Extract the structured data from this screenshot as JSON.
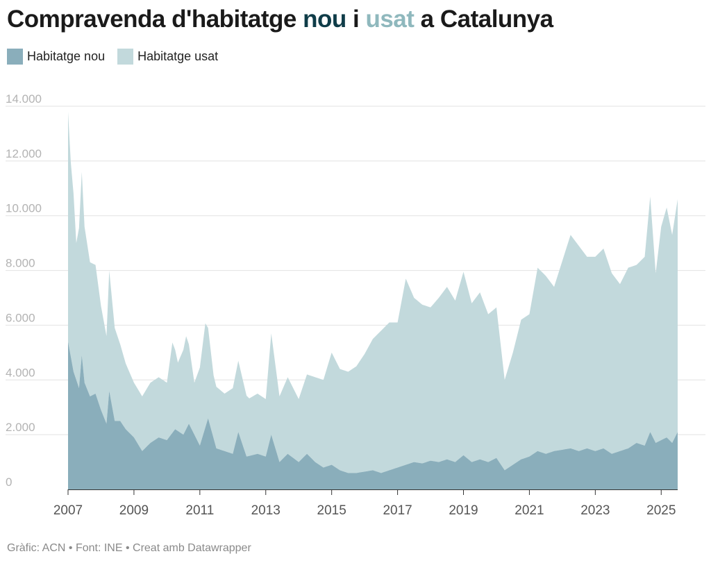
{
  "title": {
    "part1": "Compravenda d'habitatge ",
    "part2": "nou",
    "part3": " i ",
    "part4": "usat",
    "part5": " a Catalunya"
  },
  "colors": {
    "nou": "#8aaebb",
    "usat": "#c2d9dc",
    "title_nou": "#0f3c48",
    "title_usat": "#8fb8bd",
    "grid": "#e2e2e2"
  },
  "footer": "Gràfic: ACN • Font: INE • Creat amb Datawrapper",
  "chart_data": {
    "type": "area",
    "stacked": true,
    "legend": [
      {
        "name": "Habitatge nou",
        "color": "#8aaebb"
      },
      {
        "name": "Habitatge usat",
        "color": "#c2d9dc"
      }
    ],
    "legend_position": "top-left",
    "grid": true,
    "ylim": [
      0,
      14000
    ],
    "y_ticks": [
      {
        "value": 0,
        "label": "0"
      },
      {
        "value": 2000,
        "label": "2.000"
      },
      {
        "value": 4000,
        "label": "4.000"
      },
      {
        "value": 6000,
        "label": "6.000"
      },
      {
        "value": 8000,
        "label": "8.000"
      },
      {
        "value": 10000,
        "label": "10.000"
      },
      {
        "value": 12000,
        "label": "12.000"
      },
      {
        "value": 14000,
        "label": "14.000"
      }
    ],
    "x_ticks": [
      "2007",
      "2009",
      "2011",
      "2013",
      "2015",
      "2017",
      "2019",
      "2021",
      "2023",
      "2025"
    ],
    "xlim": [
      "2007-01",
      "2025-07"
    ],
    "series": [
      {
        "name": "Habitatge nou",
        "points": [
          [
            "2007-01",
            5400
          ],
          [
            "2007-03",
            4300
          ],
          [
            "2007-05",
            3700
          ],
          [
            "2007-06",
            4900
          ],
          [
            "2007-07",
            3900
          ],
          [
            "2007-09",
            3400
          ],
          [
            "2007-11",
            3500
          ],
          [
            "2008-01",
            2900
          ],
          [
            "2008-03",
            2400
          ],
          [
            "2008-04",
            3600
          ],
          [
            "2008-06",
            2500
          ],
          [
            "2008-08",
            2500
          ],
          [
            "2008-10",
            2200
          ],
          [
            "2009-01",
            1900
          ],
          [
            "2009-04",
            1400
          ],
          [
            "2009-07",
            1700
          ],
          [
            "2009-10",
            1900
          ],
          [
            "2010-01",
            1800
          ],
          [
            "2010-04",
            2200
          ],
          [
            "2010-07",
            2000
          ],
          [
            "2010-09",
            2400
          ],
          [
            "2011-01",
            1600
          ],
          [
            "2011-04",
            2600
          ],
          [
            "2011-07",
            1500
          ],
          [
            "2011-10",
            1400
          ],
          [
            "2012-01",
            1300
          ],
          [
            "2012-03",
            2100
          ],
          [
            "2012-06",
            1200
          ],
          [
            "2012-10",
            1300
          ],
          [
            "2013-01",
            1200
          ],
          [
            "2013-03",
            2000
          ],
          [
            "2013-06",
            1000
          ],
          [
            "2013-09",
            1300
          ],
          [
            "2014-01",
            1000
          ],
          [
            "2014-04",
            1300
          ],
          [
            "2014-07",
            1000
          ],
          [
            "2014-10",
            800
          ],
          [
            "2015-01",
            900
          ],
          [
            "2015-04",
            700
          ],
          [
            "2015-07",
            600
          ],
          [
            "2015-10",
            600
          ],
          [
            "2016-01",
            650
          ],
          [
            "2016-04",
            700
          ],
          [
            "2016-07",
            600
          ],
          [
            "2016-10",
            700
          ],
          [
            "2017-01",
            800
          ],
          [
            "2017-04",
            900
          ],
          [
            "2017-07",
            1000
          ],
          [
            "2017-10",
            950
          ],
          [
            "2018-01",
            1050
          ],
          [
            "2018-04",
            1000
          ],
          [
            "2018-07",
            1100
          ],
          [
            "2018-10",
            1000
          ],
          [
            "2019-01",
            1250
          ],
          [
            "2019-04",
            1000
          ],
          [
            "2019-07",
            1100
          ],
          [
            "2019-10",
            1000
          ],
          [
            "2020-01",
            1150
          ],
          [
            "2020-04",
            700
          ],
          [
            "2020-07",
            900
          ],
          [
            "2020-10",
            1100
          ],
          [
            "2021-01",
            1200
          ],
          [
            "2021-04",
            1400
          ],
          [
            "2021-07",
            1300
          ],
          [
            "2021-10",
            1400
          ],
          [
            "2022-01",
            1450
          ],
          [
            "2022-04",
            1500
          ],
          [
            "2022-07",
            1400
          ],
          [
            "2022-10",
            1500
          ],
          [
            "2023-01",
            1400
          ],
          [
            "2023-04",
            1500
          ],
          [
            "2023-07",
            1300
          ],
          [
            "2023-10",
            1400
          ],
          [
            "2024-01",
            1500
          ],
          [
            "2024-04",
            1700
          ],
          [
            "2024-07",
            1600
          ],
          [
            "2024-09",
            2100
          ],
          [
            "2024-11",
            1700
          ],
          [
            "2025-01",
            1800
          ],
          [
            "2025-03",
            1900
          ],
          [
            "2025-05",
            1700
          ],
          [
            "2025-07",
            2100
          ]
        ]
      },
      {
        "name": "Habitatge usat",
        "points": [
          [
            "2007-01",
            8400
          ],
          [
            "2007-02",
            7100
          ],
          [
            "2007-03",
            6500
          ],
          [
            "2007-04",
            5000
          ],
          [
            "2007-06",
            6700
          ],
          [
            "2007-07",
            5700
          ],
          [
            "2007-09",
            4900
          ],
          [
            "2007-11",
            4700
          ],
          [
            "2008-01",
            3800
          ],
          [
            "2008-03",
            3200
          ],
          [
            "2008-04",
            4400
          ],
          [
            "2008-06",
            3400
          ],
          [
            "2008-08",
            2800
          ],
          [
            "2008-10",
            2400
          ],
          [
            "2009-01",
            2000
          ],
          [
            "2009-04",
            2000
          ],
          [
            "2009-07",
            2200
          ],
          [
            "2009-10",
            2200
          ],
          [
            "2010-01",
            2100
          ],
          [
            "2010-03",
            3300
          ],
          [
            "2010-05",
            2500
          ],
          [
            "2010-08",
            3400
          ],
          [
            "2010-11",
            1900
          ],
          [
            "2011-03",
            3800
          ],
          [
            "2011-06",
            2300
          ],
          [
            "2011-10",
            2100
          ],
          [
            "2012-03",
            2600
          ],
          [
            "2012-07",
            2100
          ],
          [
            "2012-10",
            2200
          ],
          [
            "2013-01",
            2100
          ],
          [
            "2013-03",
            3700
          ],
          [
            "2013-06",
            2400
          ],
          [
            "2013-09",
            2800
          ],
          [
            "2014-01",
            2300
          ],
          [
            "2014-04",
            2900
          ],
          [
            "2014-07",
            3100
          ],
          [
            "2014-10",
            3200
          ],
          [
            "2015-01",
            4100
          ],
          [
            "2015-04",
            3700
          ],
          [
            "2015-07",
            3700
          ],
          [
            "2015-10",
            3900
          ],
          [
            "2016-01",
            4300
          ],
          [
            "2016-04",
            4800
          ],
          [
            "2016-07",
            5200
          ],
          [
            "2016-10",
            5400
          ],
          [
            "2017-01",
            5300
          ],
          [
            "2017-04",
            6800
          ],
          [
            "2017-07",
            6000
          ],
          [
            "2017-10",
            5800
          ],
          [
            "2018-01",
            5600
          ],
          [
            "2018-04",
            6000
          ],
          [
            "2018-07",
            6300
          ],
          [
            "2018-10",
            5900
          ],
          [
            "2019-01",
            6700
          ],
          [
            "2019-04",
            5800
          ],
          [
            "2019-07",
            6100
          ],
          [
            "2019-10",
            5400
          ],
          [
            "2020-01",
            5500
          ],
          [
            "2020-04",
            3300
          ],
          [
            "2020-07",
            4100
          ],
          [
            "2020-10",
            5100
          ],
          [
            "2021-01",
            5200
          ],
          [
            "2021-04",
            6700
          ],
          [
            "2021-07",
            6500
          ],
          [
            "2021-10",
            6000
          ],
          [
            "2022-01",
            6900
          ],
          [
            "2022-04",
            7800
          ],
          [
            "2022-07",
            7500
          ],
          [
            "2022-10",
            7000
          ],
          [
            "2023-01",
            7100
          ],
          [
            "2023-04",
            7300
          ],
          [
            "2023-07",
            6600
          ],
          [
            "2023-10",
            6100
          ],
          [
            "2024-01",
            6600
          ],
          [
            "2024-04",
            6500
          ],
          [
            "2024-07",
            6900
          ],
          [
            "2024-09",
            8600
          ],
          [
            "2024-11",
            6200
          ],
          [
            "2025-01",
            7800
          ],
          [
            "2025-03",
            8400
          ],
          [
            "2025-05",
            7600
          ],
          [
            "2025-07",
            8500
          ]
        ]
      }
    ]
  }
}
